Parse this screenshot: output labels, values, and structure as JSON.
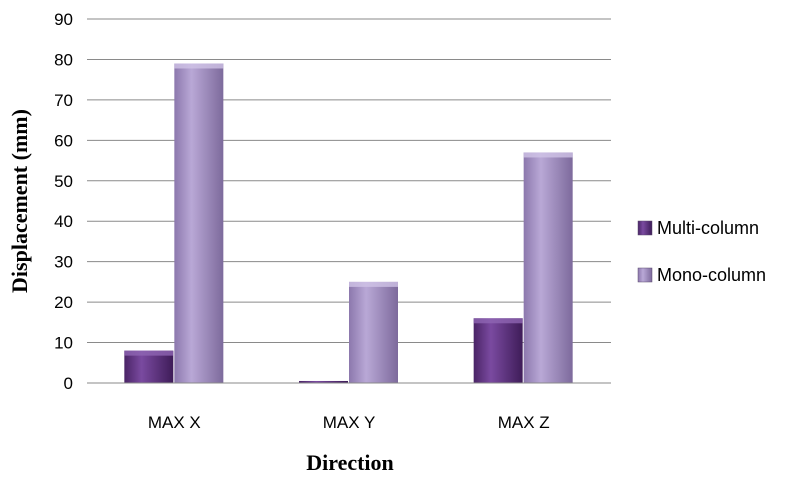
{
  "chart_data": {
    "type": "bar",
    "title": "",
    "xlabel": "Direction",
    "ylabel": "Displacement  (mm)",
    "categories": [
      "MAX X",
      "MAX Y",
      "MAX Z"
    ],
    "series": [
      {
        "name": "Multi-column",
        "values": [
          8,
          0.5,
          16
        ],
        "color": "#6a3d8c"
      },
      {
        "name": "Mono-column",
        "values": [
          79,
          25,
          57
        ],
        "color": "#a893c7"
      }
    ],
    "ylim": [
      0,
      90
    ],
    "yticks": [
      0,
      10,
      20,
      30,
      40,
      50,
      60,
      70,
      80,
      90
    ],
    "grid": true,
    "legend_position": "right"
  }
}
